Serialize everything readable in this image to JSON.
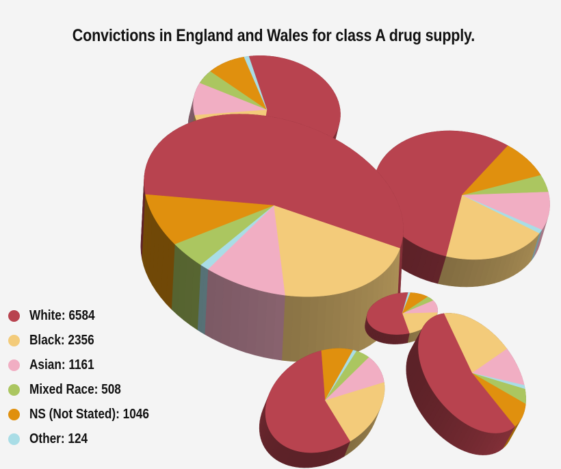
{
  "title": "Convictions in England and Wales for class A drug supply.",
  "colors": {
    "White": "#b8434f",
    "Black": "#f3cb7a",
    "Asian": "#f1aec3",
    "Mixed Race": "#abc660",
    "NS (Not Stated)": "#e0900e",
    "Other": "#a9dde6"
  },
  "legend": [
    {
      "label": "White: 6584",
      "category": "White"
    },
    {
      "label": "Black: 2356",
      "category": "Black"
    },
    {
      "label": "Asian: 1161",
      "category": "Asian"
    },
    {
      "label": "Mixed Race: 508",
      "category": "Mixed Race"
    },
    {
      "label": "NS (Not Stated): 1046",
      "category": "NS (Not Stated)"
    },
    {
      "label": "Other: 124",
      "category": "Other"
    }
  ],
  "chart_data": {
    "type": "pie",
    "title": "Convictions in England and Wales for class A drug supply.",
    "categories": [
      "White",
      "Black",
      "Asian",
      "Mixed Race",
      "NS (Not Stated)",
      "Other"
    ],
    "values": [
      6584,
      2356,
      1161,
      508,
      1046,
      124
    ],
    "legend_position": "bottom-left"
  }
}
